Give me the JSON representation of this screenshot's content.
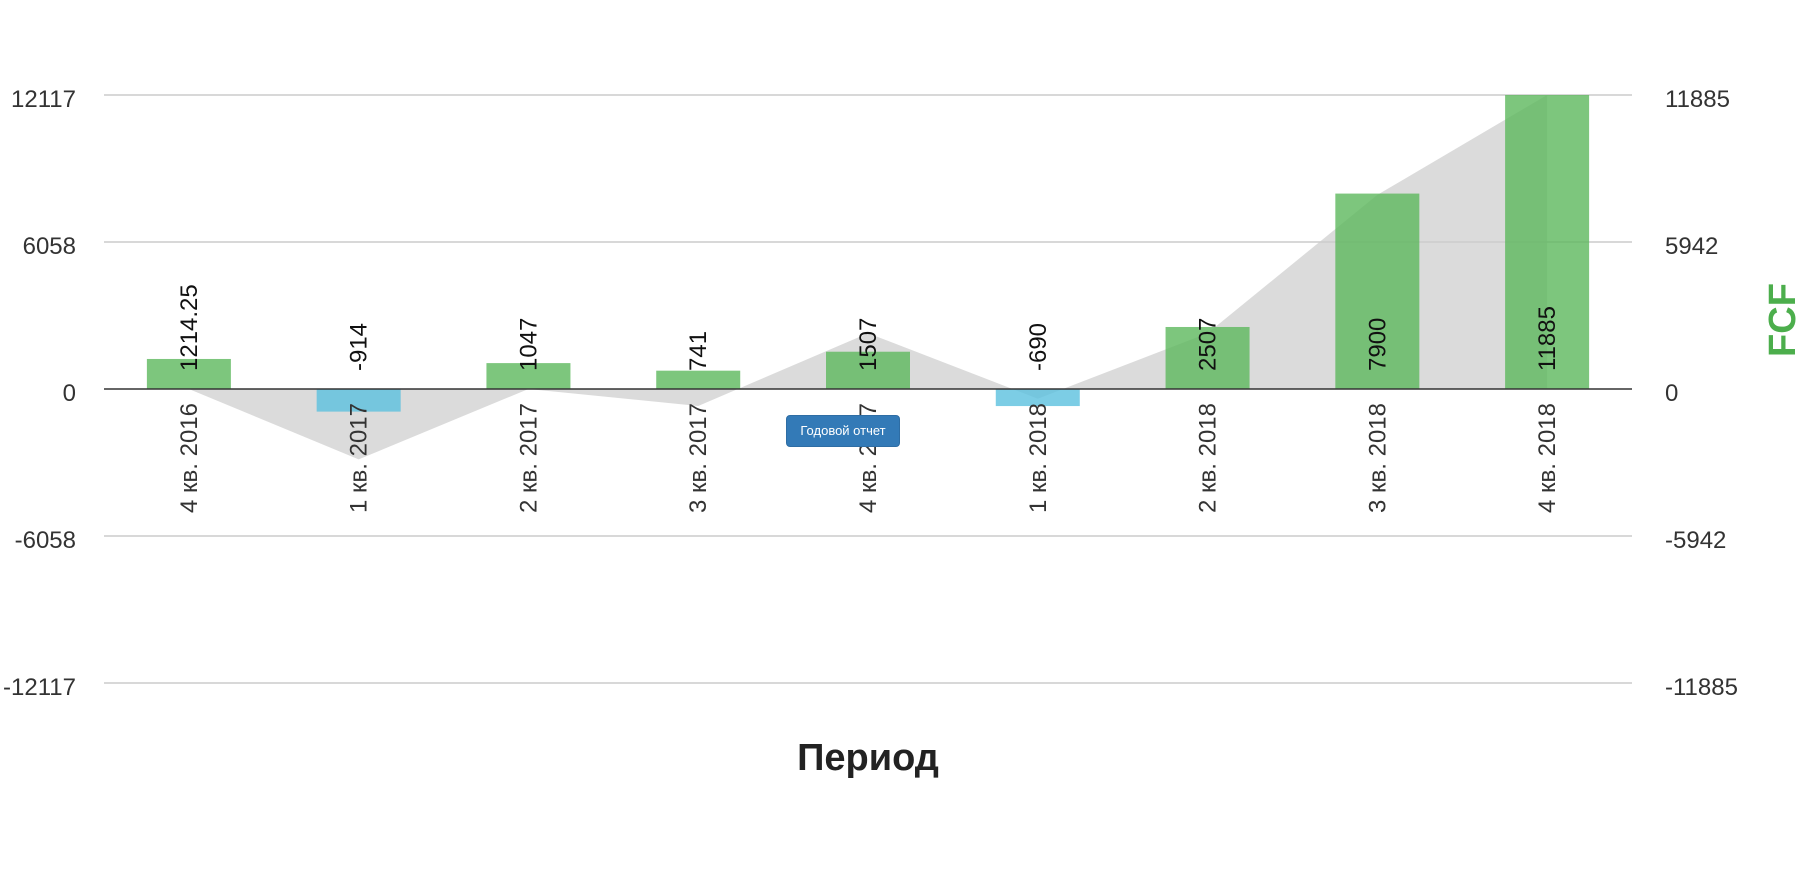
{
  "chart_data": {
    "type": "bar",
    "categories": [
      "4 кв. 2016",
      "1 кв. 2017",
      "2 кв. 2017",
      "3 кв. 2017",
      "4 кв. 2017",
      "1 кв. 2018",
      "2 кв. 2018",
      "3 кв. 2018",
      "4 кв. 2018"
    ],
    "series": [
      {
        "name": "FCF",
        "values": [
          1214.25,
          -914,
          1047,
          741,
          1507,
          -690,
          2507,
          7900,
          11885
        ],
        "value_labels": [
          "1214.25",
          "-914",
          "1047",
          "741",
          "1507",
          "-690",
          "2507",
          "7900",
          "11885"
        ]
      }
    ],
    "area_values": [
      0,
      -2900,
      0,
      -700,
      2300,
      -400,
      2300,
      8000,
      12117
    ],
    "xlabel": "Период",
    "ylabel_right": "FCF",
    "left_axis": {
      "ylim": [
        -12117,
        12117
      ],
      "ticks": [
        12117,
        6058,
        0,
        -6058,
        -12117
      ],
      "tick_labels": [
        "12117",
        "6058",
        "0",
        "-6058",
        "-12117"
      ]
    },
    "right_axis": {
      "ylim": [
        -11885,
        11885
      ],
      "ticks": [
        11885,
        5942,
        0,
        -5942,
        -11885
      ],
      "tick_labels": [
        "11885",
        "5942",
        "0",
        "-5942",
        "-11885"
      ]
    },
    "grid": true,
    "colors": {
      "positive": "#5cb85c",
      "negative": "#5bc0de",
      "area": "#cccccc",
      "grid": "#cccccc",
      "zero_line": "#333333",
      "ylabel_right": "#4cae4c"
    }
  },
  "annual_report_button": {
    "label": "Годовой отчет"
  }
}
